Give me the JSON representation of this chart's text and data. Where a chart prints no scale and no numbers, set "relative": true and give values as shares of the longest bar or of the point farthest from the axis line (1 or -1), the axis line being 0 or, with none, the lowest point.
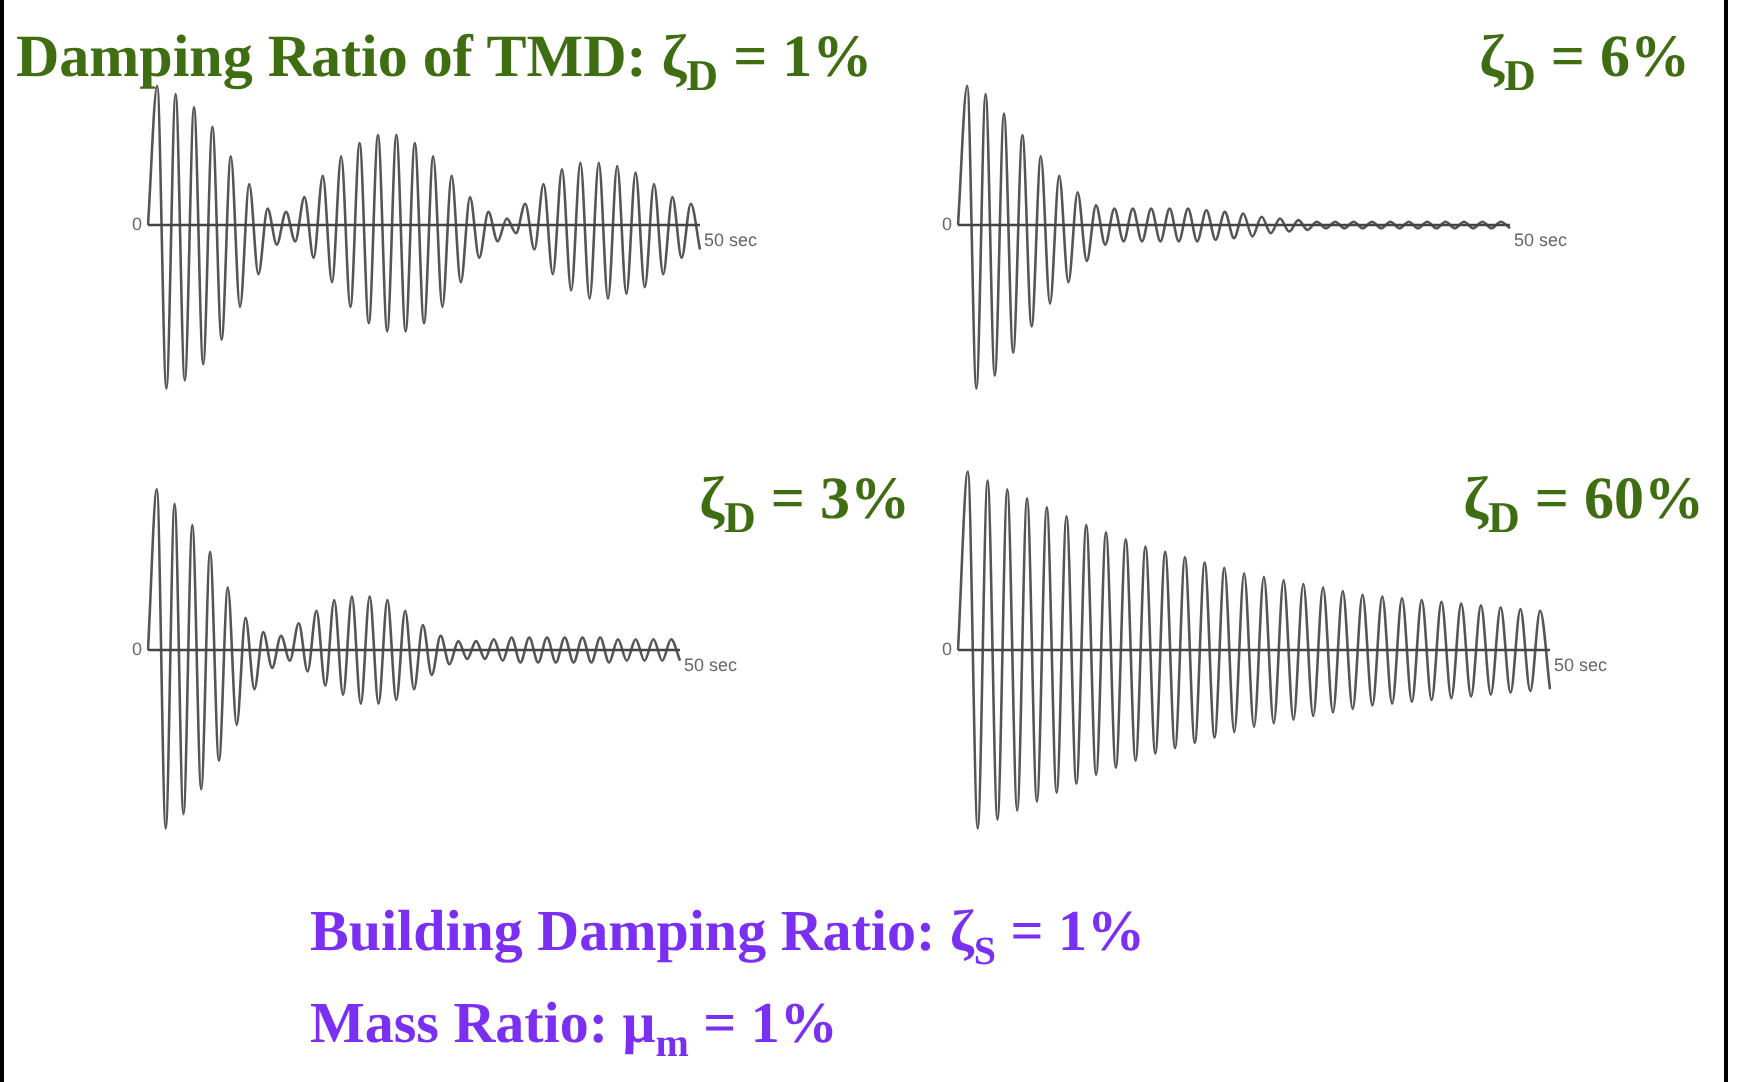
{
  "chart_data": [
    {
      "type": "line",
      "relative": true,
      "title": "Damping Ratio of TMD: ζ$_{D}$ = 1%",
      "annotations": [
        "0",
        "50 sec"
      ],
      "categories": [
        null,
        null,
        null,
        null,
        null,
        null,
        null,
        null,
        null,
        null,
        null,
        null,
        null,
        null,
        null,
        null,
        null,
        null,
        null,
        null,
        null,
        null,
        null,
        null,
        null,
        null,
        null,
        null,
        null,
        null,
        null,
        null,
        null,
        null,
        null,
        null,
        null,
        null,
        null,
        null,
        null,
        null,
        null,
        null,
        null,
        null,
        null,
        null,
        null,
        null,
        null,
        null,
        null,
        null,
        null,
        null,
        null,
        null,
        null,
        null,
        null
      ],
      "series": [
        {
          "color": "#555555",
          "values": [
            0,
            0.85,
            -1,
            0.8,
            -0.95,
            0.72,
            -0.85,
            0.6,
            -0.7,
            0.42,
            -0.5,
            0.25,
            -0.3,
            0.1,
            -0.12,
            0.08,
            -0.1,
            0.17,
            -0.2,
            0.3,
            -0.35,
            0.42,
            -0.5,
            0.5,
            -0.6,
            0.55,
            -0.65,
            0.55,
            -0.65,
            0.5,
            -0.6,
            0.42,
            -0.5,
            0.3,
            -0.35,
            0.17,
            -0.2,
            0.08,
            -0.1,
            0.04,
            -0.05,
            0.13,
            -0.15,
            0.25,
            -0.3,
            0.34,
            -0.4,
            0.38,
            -0.45,
            0.38,
            -0.45,
            0.36,
            -0.42,
            0.32,
            -0.38,
            0.25,
            -0.3,
            0.17,
            -0.2,
            0.13,
            -0.15
          ]
        }
      ]
    },
    {
      "type": "line",
      "relative": true,
      "title": "ζ$_{D}$ = 6%",
      "annotations": [
        "0",
        "50 sec"
      ],
      "categories": [
        null,
        null,
        null,
        null,
        null,
        null,
        null,
        null,
        null,
        null,
        null,
        null,
        null,
        null,
        null,
        null,
        null,
        null,
        null,
        null,
        null,
        null,
        null,
        null,
        null,
        null,
        null,
        null,
        null,
        null,
        null,
        null,
        null,
        null,
        null,
        null,
        null,
        null,
        null,
        null,
        null,
        null,
        null,
        null,
        null,
        null,
        null,
        null,
        null,
        null,
        null,
        null,
        null,
        null,
        null,
        null,
        null,
        null,
        null,
        null,
        null
      ],
      "series": [
        {
          "color": "#555555",
          "values": [
            0,
            0.85,
            -1,
            0.8,
            -0.92,
            0.68,
            -0.78,
            0.55,
            -0.62,
            0.42,
            -0.48,
            0.3,
            -0.35,
            0.2,
            -0.22,
            0.12,
            -0.12,
            0.1,
            -0.1,
            0.1,
            -0.1,
            0.1,
            -0.1,
            0.1,
            -0.1,
            0.1,
            -0.1,
            0.09,
            -0.09,
            0.08,
            -0.08,
            0.07,
            -0.07,
            0.05,
            -0.05,
            0.04,
            -0.04,
            0.03,
            -0.03,
            0.02,
            -0.02,
            0.02,
            -0.02,
            0.02,
            -0.02,
            0.02,
            -0.02,
            0.02,
            -0.02,
            0.02,
            -0.02,
            0.02,
            -0.02,
            0.02,
            -0.02,
            0.02,
            -0.02,
            0.02,
            -0.02,
            0.02,
            -0.02
          ]
        }
      ]
    },
    {
      "type": "line",
      "relative": true,
      "title": "ζ$_{D}$ = 3%",
      "annotations": [
        "0",
        "50 sec"
      ],
      "categories": [
        null,
        null,
        null,
        null,
        null,
        null,
        null,
        null,
        null,
        null,
        null,
        null,
        null,
        null,
        null,
        null,
        null,
        null,
        null,
        null,
        null,
        null,
        null,
        null,
        null,
        null,
        null,
        null,
        null,
        null,
        null,
        null,
        null,
        null,
        null,
        null,
        null,
        null,
        null,
        null,
        null,
        null,
        null,
        null,
        null,
        null,
        null,
        null,
        null,
        null,
        null,
        null,
        null,
        null,
        null,
        null,
        null,
        null,
        null,
        null,
        null
      ],
      "series": [
        {
          "color": "#555555",
          "values": [
            0,
            0.9,
            -1,
            0.82,
            -0.92,
            0.7,
            -0.78,
            0.55,
            -0.62,
            0.35,
            -0.42,
            0.18,
            -0.22,
            0.1,
            -0.1,
            0.08,
            -0.06,
            0.15,
            -0.12,
            0.22,
            -0.2,
            0.28,
            -0.25,
            0.3,
            -0.3,
            0.3,
            -0.3,
            0.28,
            -0.28,
            0.22,
            -0.22,
            0.14,
            -0.14,
            0.08,
            -0.08,
            0.05,
            -0.05,
            0.05,
            -0.05,
            0.06,
            -0.06,
            0.07,
            -0.07,
            0.07,
            -0.07,
            0.07,
            -0.07,
            0.07,
            -0.07,
            0.07,
            -0.07,
            0.07,
            -0.07,
            0.06,
            -0.06,
            0.06,
            -0.06,
            0.06,
            -0.06,
            0.06,
            -0.06
          ]
        }
      ]
    },
    {
      "type": "line",
      "relative": true,
      "title": "ζ$_{D}$ = 60%",
      "annotations": [
        "0",
        "50 sec"
      ],
      "categories": [
        null,
        null,
        null,
        null,
        null,
        null,
        null,
        null,
        null,
        null,
        null,
        null,
        null,
        null,
        null,
        null,
        null,
        null,
        null,
        null,
        null,
        null,
        null,
        null,
        null,
        null,
        null,
        null,
        null,
        null,
        null,
        null,
        null,
        null,
        null,
        null,
        null,
        null,
        null,
        null,
        null,
        null,
        null,
        null,
        null,
        null,
        null,
        null,
        null,
        null,
        null,
        null,
        null,
        null,
        null,
        null,
        null,
        null,
        null,
        null,
        null
      ],
      "series": [
        {
          "color": "#555555",
          "values": [
            0,
            1,
            -1,
            0.95,
            -0.95,
            0.9,
            -0.9,
            0.85,
            -0.85,
            0.8,
            -0.8,
            0.75,
            -0.75,
            0.7,
            -0.7,
            0.66,
            -0.66,
            0.62,
            -0.62,
            0.58,
            -0.58,
            0.55,
            -0.55,
            0.52,
            -0.52,
            0.49,
            -0.49,
            0.46,
            -0.46,
            0.43,
            -0.43,
            0.41,
            -0.41,
            0.39,
            -0.39,
            0.37,
            -0.37,
            0.35,
            -0.35,
            0.33,
            -0.33,
            0.31,
            -0.31,
            0.3,
            -0.3,
            0.29,
            -0.29,
            0.28,
            -0.28,
            0.27,
            -0.27,
            0.26,
            -0.26,
            0.25,
            -0.25,
            0.24,
            -0.24,
            0.23,
            -0.23,
            0.22,
            -0.22
          ]
        }
      ]
    },
    {
      "type": "other",
      "annotations": [
        "Building Damping Ratio: ζ$_{S}$ = 1%",
        "Mass Ratio: μ$_{m}$ = 1%"
      ]
    }
  ]
}
